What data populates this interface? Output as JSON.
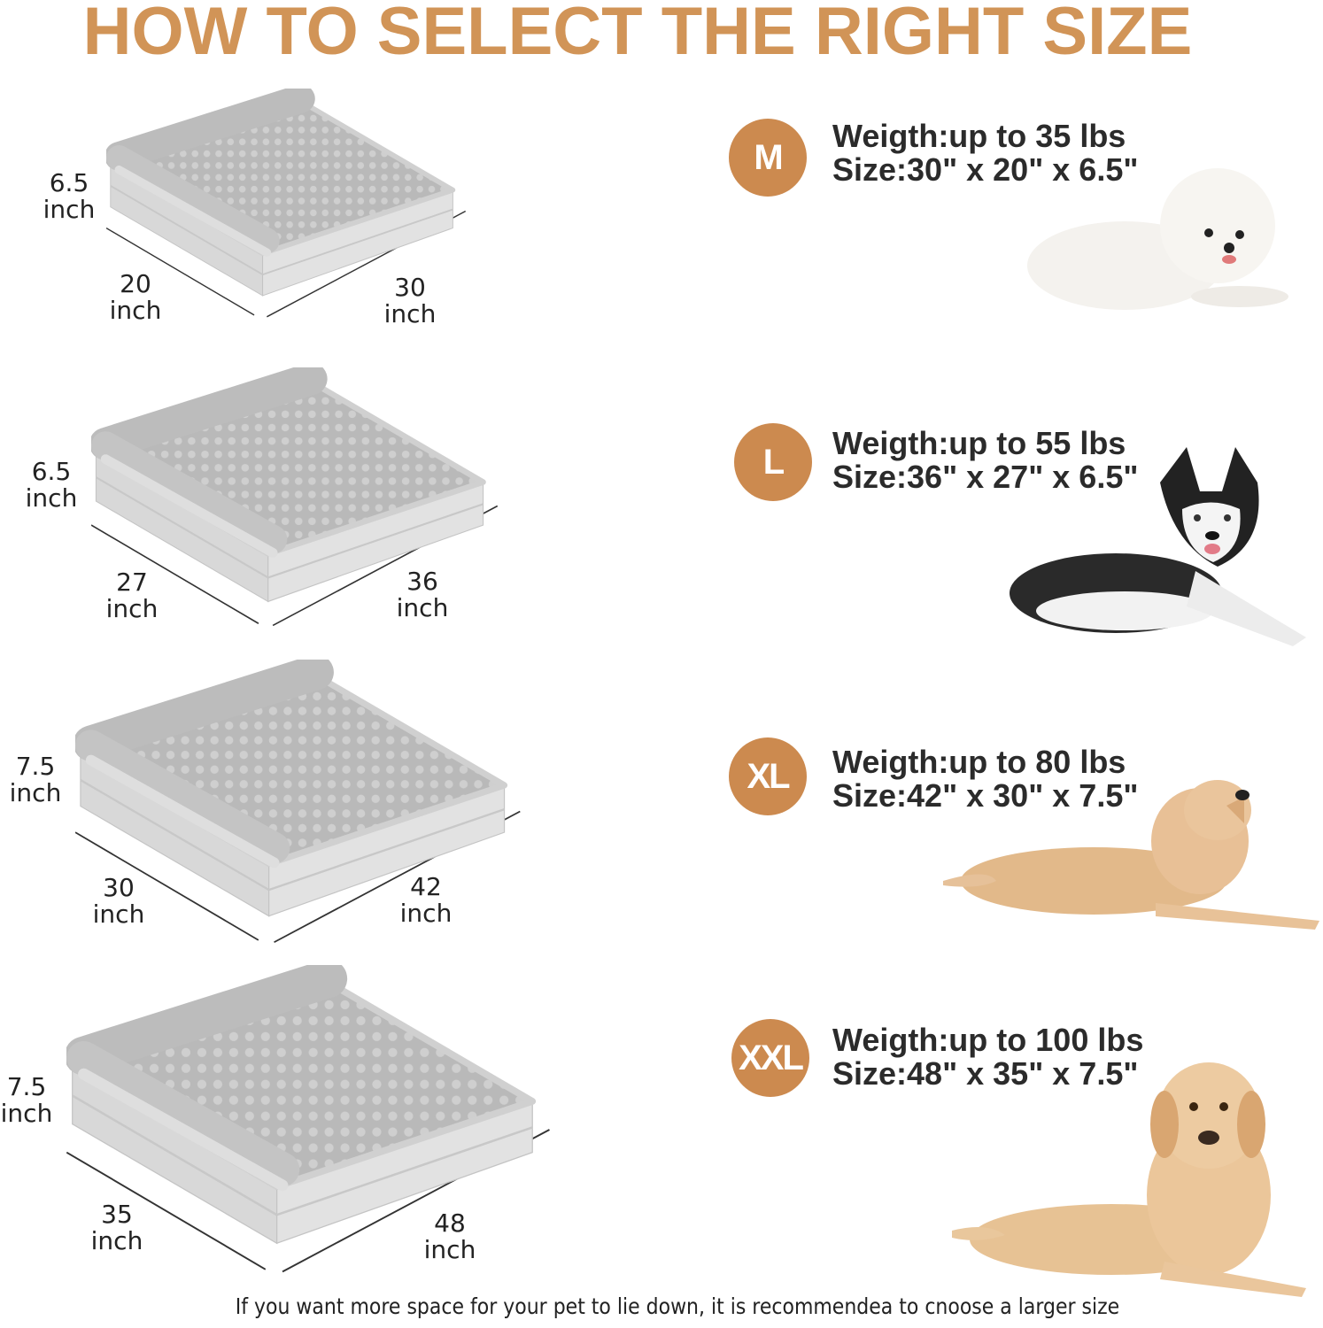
{
  "title": "HOW TO SELECT THE RIGHT SIZE",
  "accent_color": "#cc8a4f",
  "title_color": "#d19457",
  "sizes": [
    {
      "badge": "M",
      "weight": "Weigth:up to 35 lbs",
      "size": "Size:30\" x 20\" x 6.5\"",
      "height": {
        "value": "6.5",
        "unit": "inch"
      },
      "width": {
        "value": "20",
        "unit": "inch"
      },
      "length": {
        "value": "30",
        "unit": "inch"
      },
      "dog": "white-bichon"
    },
    {
      "badge": "L",
      "weight": "Weigth:up to 55 lbs",
      "size": "Size:36\" x 27\" x 6.5\"",
      "height": {
        "value": "6.5",
        "unit": "inch"
      },
      "width": {
        "value": "27",
        "unit": "inch"
      },
      "length": {
        "value": "36",
        "unit": "inch"
      },
      "dog": "husky"
    },
    {
      "badge": "XL",
      "weight": "Weigth:up to 80 lbs",
      "size": "Size:42\" x 30\" x 7.5\"",
      "height": {
        "value": "7.5",
        "unit": "inch"
      },
      "width": {
        "value": "30",
        "unit": "inch"
      },
      "length": {
        "value": "42",
        "unit": "inch"
      },
      "dog": "golden-retriever"
    },
    {
      "badge": "XXL",
      "weight": "Weigth:up to 100 lbs",
      "size": "Size:48\" x 35\" x 7.5\"",
      "height": {
        "value": "7.5",
        "unit": "inch"
      },
      "width": {
        "value": "35",
        "unit": "inch"
      },
      "length": {
        "value": "48",
        "unit": "inch"
      },
      "dog": "labrador"
    }
  ],
  "footer": "If you want more space for your pet to lie down, it is recommendea to cnoose a larger size"
}
